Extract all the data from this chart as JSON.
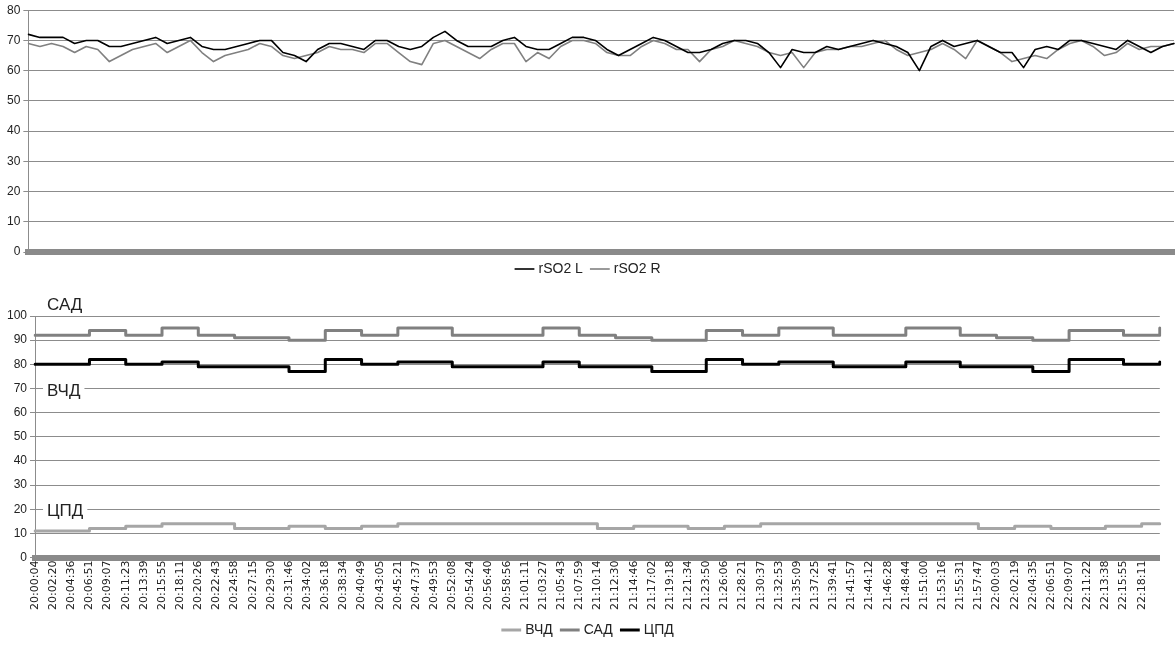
{
  "chart_data": [
    {
      "type": "line",
      "categories": [
        null,
        null,
        null,
        null,
        null,
        null,
        null,
        null,
        null,
        null,
        null,
        null,
        null,
        null,
        null,
        null,
        null,
        null,
        null,
        null,
        null,
        null,
        null,
        null,
        null,
        null,
        null,
        null,
        null,
        null,
        null,
        null,
        null,
        null,
        null,
        null,
        null,
        null,
        null,
        null,
        null,
        null,
        null,
        null,
        null,
        null,
        null,
        null,
        null,
        null,
        null,
        null,
        null,
        null,
        null,
        null,
        null,
        null,
        null,
        null,
        null,
        null,
        null,
        null,
        null,
        null,
        null,
        null,
        null,
        null,
        null,
        null,
        null,
        null,
        null,
        null,
        null,
        null,
        null,
        null,
        null,
        null,
        null,
        null,
        null,
        null,
        null,
        null,
        null,
        null,
        null,
        null,
        null,
        null,
        null,
        null,
        null,
        null,
        null,
        null
      ],
      "series": [
        {
          "name": "rSO2 L",
          "color": "#000000",
          "values": [
            72,
            71,
            71,
            71,
            69,
            70,
            70,
            68,
            68,
            69,
            70,
            71,
            69,
            70,
            71,
            68,
            67,
            67,
            68,
            69,
            70,
            70,
            66,
            65,
            63,
            67,
            69,
            69,
            68,
            67,
            70,
            70,
            68,
            67,
            68,
            71,
            73,
            70,
            68,
            68,
            68,
            70,
            71,
            68,
            67,
            67,
            69,
            71,
            71,
            70,
            67,
            65,
            67,
            69,
            71,
            70,
            68,
            66,
            66,
            67,
            69,
            70,
            70,
            69,
            66,
            61,
            67,
            66,
            66,
            68,
            67,
            68,
            69,
            70,
            69,
            68,
            66,
            60,
            68,
            70,
            68,
            69,
            70,
            68,
            66,
            66,
            61,
            67,
            68,
            67,
            70,
            70,
            69,
            68,
            67,
            70,
            68,
            66,
            68,
            69
          ]
        },
        {
          "name": "rSO2 R",
          "color": "#808080",
          "values": [
            69,
            68,
            69,
            68,
            66,
            68,
            67,
            63,
            65,
            67,
            68,
            69,
            66,
            68,
            70,
            66,
            63,
            65,
            66,
            67,
            69,
            68,
            65,
            64,
            65,
            66,
            68,
            67,
            67,
            66,
            69,
            69,
            66,
            63,
            62,
            69,
            70,
            68,
            66,
            64,
            67,
            69,
            69,
            63,
            66,
            64,
            68,
            70,
            70,
            69,
            66,
            65,
            65,
            68,
            70,
            69,
            67,
            67,
            63,
            67,
            68,
            70,
            69,
            68,
            66,
            65,
            66,
            61,
            66,
            67,
            67,
            68,
            68,
            69,
            70,
            67,
            65,
            66,
            67,
            69,
            67,
            64,
            70,
            68,
            66,
            63,
            64,
            65,
            64,
            67,
            69,
            70,
            68,
            65,
            66,
            69,
            67,
            68,
            68,
            69
          ]
        }
      ],
      "ylim": [
        0,
        80
      ],
      "yticks": [
        0,
        10,
        20,
        30,
        40,
        50,
        60,
        70,
        80
      ],
      "grid": "y",
      "legend": "bottom",
      "marker": "none",
      "tick_labels": "y"
    },
    {
      "type": "step",
      "categories": [
        "20:00:04",
        "20:02:20",
        "20:04:36",
        "20:06:51",
        "20:09:07",
        "20:11:23",
        "20:13:39",
        "20:15:55",
        "20:18:11",
        "20:20:26",
        "20:22:43",
        "20:24:58",
        "20:27:15",
        "20:29:30",
        "20:31:46",
        "20:34:02",
        "20:36:18",
        "20:38:34",
        "20:40:49",
        "20:43:05",
        "20:45:21",
        "20:47:37",
        "20:49:53",
        "20:52:08",
        "20:54:24",
        "20:56:40",
        "20:58:56",
        "21:01:11",
        "21:03:27",
        "21:05:43",
        "21:07:59",
        "21:10:14",
        "21:12:30",
        "21:14:46",
        "21:17:02",
        "21:19:18",
        "21:21:34",
        "21:23:50",
        "21:26:06",
        "21:28:21",
        "21:30:37",
        "21:32:53",
        "21:35:09",
        "21:37:25",
        "21:39:41",
        "21:41:57",
        "21:44:12",
        "21:46:28",
        "21:48:44",
        "21:51:00",
        "21:53:16",
        "21:55:31",
        "21:57:47",
        "22:00:03",
        "22:02:19",
        "22:04:35",
        "22:06:51",
        "22:09:07",
        "22:11:22",
        "22:13:38",
        "22:15:55",
        "22:18:11",
        null
      ],
      "series": [
        {
          "name": "ВЧД",
          "color": "#a6a6a6",
          "values": [
            11,
            11,
            11,
            12,
            12,
            13,
            13,
            14,
            14,
            14,
            14,
            12,
            12,
            12,
            13,
            13,
            12,
            12,
            13,
            13,
            14,
            14,
            14,
            14,
            14,
            14,
            14,
            14,
            14,
            14,
            14,
            12,
            12,
            13,
            13,
            13,
            12,
            12,
            13,
            13,
            14,
            14,
            14,
            14,
            14,
            14,
            14,
            14,
            14,
            14,
            14,
            14,
            12,
            12,
            13,
            13,
            12,
            12,
            12,
            13,
            13,
            14,
            14
          ]
        },
        {
          "name": "САД",
          "color": "#808080",
          "values": [
            92,
            92,
            92,
            94,
            94,
            92,
            92,
            95,
            95,
            92,
            92,
            91,
            91,
            91,
            90,
            90,
            94,
            94,
            92,
            92,
            95,
            95,
            95,
            92,
            92,
            92,
            92,
            92,
            95,
            95,
            92,
            92,
            91,
            91,
            90,
            90,
            90,
            94,
            94,
            92,
            92,
            95,
            95,
            95,
            92,
            92,
            92,
            92,
            95,
            95,
            95,
            92,
            92,
            91,
            91,
            90,
            90,
            94,
            94,
            94,
            92,
            92,
            95
          ]
        },
        {
          "name": "ЦПД",
          "color": "#000000",
          "values": [
            80,
            80,
            80,
            82,
            82,
            80,
            80,
            81,
            81,
            79,
            79,
            79,
            79,
            79,
            77,
            77,
            82,
            82,
            80,
            80,
            81,
            81,
            81,
            79,
            79,
            79,
            79,
            79,
            81,
            81,
            79,
            79,
            79,
            79,
            77,
            77,
            77,
            82,
            82,
            80,
            80,
            81,
            81,
            81,
            79,
            79,
            79,
            79,
            81,
            81,
            81,
            79,
            79,
            79,
            79,
            77,
            77,
            82,
            82,
            82,
            80,
            80,
            81
          ]
        }
      ],
      "ylim": [
        0,
        100
      ],
      "yticks": [
        0,
        10,
        20,
        30,
        40,
        50,
        60,
        70,
        80,
        90,
        100
      ],
      "grid": "y",
      "legend": "bottom",
      "marker": "none",
      "annotations": [
        "САД",
        "ВЧД",
        "ЦПД"
      ]
    }
  ]
}
